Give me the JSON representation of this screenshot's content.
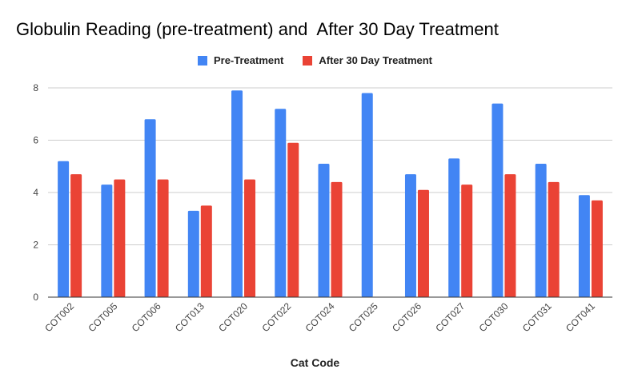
{
  "chart_data": {
    "type": "bar",
    "title": "Globulin Reading (pre-treatment) and  After 30 Day Treatment",
    "xlabel": "Cat Code",
    "ylabel": "",
    "ylim": [
      0,
      8
    ],
    "yticks": [
      0,
      2,
      4,
      6,
      8
    ],
    "grid": true,
    "legend_position": "top",
    "categories": [
      "COT002",
      "COT005",
      "COT006",
      "COT013",
      "COT020",
      "COT022",
      "COT024",
      "COT025",
      "COT026",
      "COT027",
      "COT030",
      "COT031",
      "COT041"
    ],
    "series": [
      {
        "name": "Pre-Treatment",
        "color": "#4285f4",
        "values": [
          5.2,
          4.3,
          6.8,
          3.3,
          7.9,
          7.2,
          5.1,
          7.8,
          4.7,
          5.3,
          7.4,
          5.1,
          3.9
        ]
      },
      {
        "name": "After 30 Day Treatment",
        "color": "#ea4335",
        "values": [
          4.7,
          4.5,
          4.5,
          3.5,
          4.5,
          5.9,
          4.4,
          null,
          4.1,
          4.3,
          4.7,
          4.4,
          3.7
        ]
      }
    ]
  }
}
